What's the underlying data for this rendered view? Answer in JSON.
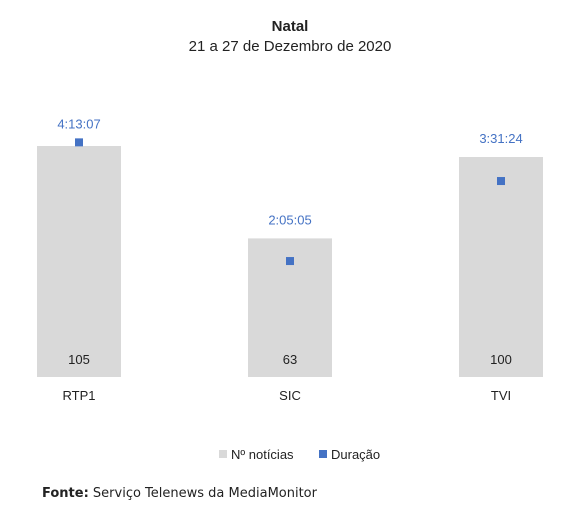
{
  "chart_data": {
    "type": "bar",
    "title": "Natal",
    "subtitle": "21 a 27 de Dezembro de 2020",
    "categories": [
      "RTP1",
      "SIC",
      "TVI"
    ],
    "series": [
      {
        "name": "Nº notícias",
        "values": [
          105,
          63,
          100
        ],
        "color": "#d9d9d9"
      },
      {
        "name": "Duração",
        "values": [
          "4:13:07",
          "2:05:05",
          "3:31:24"
        ],
        "color": "#4472c4"
      }
    ],
    "legend": "bottom",
    "grid": false
  },
  "source": {
    "label": "Fonte:",
    "text": "Serviço Telenews da MediaMonitor"
  }
}
